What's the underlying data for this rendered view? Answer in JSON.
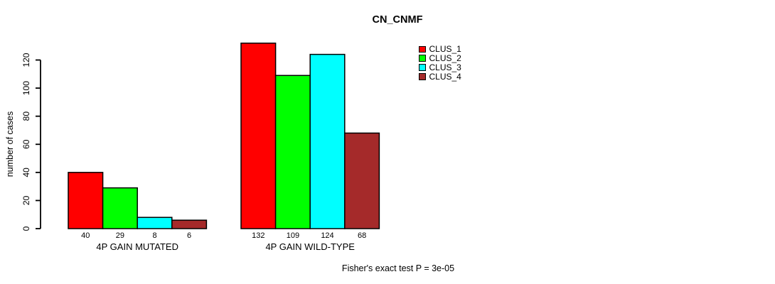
{
  "title": "CN_CNMF",
  "footer": "Fisher's exact test P = 3e-05",
  "legend": [
    {
      "label": "CLUS_1",
      "color": "#FF0000"
    },
    {
      "label": "CLUS_2",
      "color": "#00FF00"
    },
    {
      "label": "CLUS_3",
      "color": "#00FFFF"
    },
    {
      "label": "CLUS_4",
      "color": "#A52A2A"
    }
  ],
  "chart_data": {
    "type": "bar",
    "title": "CN_CNMF",
    "xlabel": "",
    "ylabel": "number of cases",
    "categories": [
      "4P GAIN MUTATED",
      "4P GAIN WILD-TYPE"
    ],
    "series": [
      {
        "name": "CLUS_1",
        "color": "#FF0000",
        "values": [
          40,
          132
        ]
      },
      {
        "name": "CLUS_2",
        "color": "#00FF00",
        "values": [
          29,
          109
        ]
      },
      {
        "name": "CLUS_3",
        "color": "#00FFFF",
        "values": [
          8,
          124
        ]
      },
      {
        "name": "CLUS_4",
        "color": "#A52A2A",
        "values": [
          6,
          68
        ]
      }
    ],
    "bar_value_labels": [
      [
        40,
        29,
        8,
        6
      ],
      [
        132,
        109,
        124,
        68
      ]
    ],
    "yticks": [
      0,
      20,
      40,
      60,
      80,
      100,
      120
    ],
    "ylim": [
      0,
      132
    ],
    "grid": false,
    "legend_position": "top-right",
    "annotation": "Fisher's exact test P = 3e-05"
  }
}
